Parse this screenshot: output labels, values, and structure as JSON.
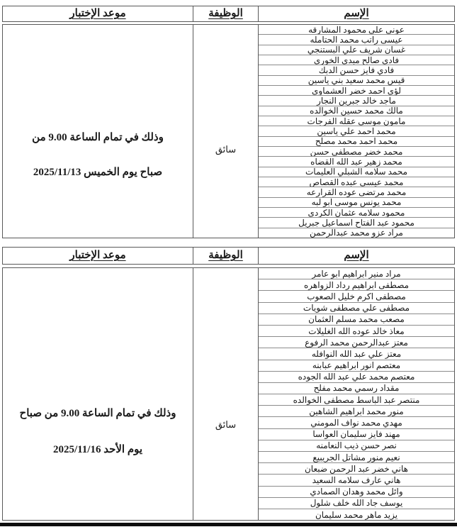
{
  "columns": {
    "date": "موعد الإختبار",
    "job": "الوظيفة",
    "name": "الإسم"
  },
  "tables": [
    {
      "job": "سائق",
      "schedule_line1": "وذلك في تمام الساعة 9.00  من",
      "schedule_line2": "صباح يوم الخميس 2025/11/13",
      "names": [
        "عوني علي محمود المشارقه",
        "عيسى راتب محمد الحتامله",
        "غسان شريف علي البستنجي",
        "فادي صالح مبدي الخوري",
        "فادي فايز حسن الدبك",
        "قيس محمد سعيد بني ياسين",
        "لؤي احمد خضر العشماوي",
        "ماجد خالد جبرين النجار",
        "مالك محمد حسين الخوالده",
        "مامون موسى عقله الفرجات",
        "محمد احمد علي ياسين",
        "محمد احمد محمد مصلح",
        "محمد خضر مصطفى حسن",
        "محمد زهير عبد الله القضاه",
        "محمد سلامه الشبلي العليمات",
        "محمد عيسى عبده القصاص",
        "محمد مرتضى عوده القرارعه",
        "محمد يونس موسى ابو لبه",
        "محمود سلامه عثمان الكردي",
        "محمود عبد الفتاح اسماعيل جبريل",
        "مراد عزو محمد عبدالرحمن"
      ]
    },
    {
      "job": "سائق",
      "schedule_line1": "وذلك في تمام الساعة 9.00 من صباح",
      "schedule_line2": "يوم الأحد  2025/11/16",
      "names": [
        "مراد منير ابراهيم ابو عامر",
        "مصطفى ابراهيم رداد الزواهره",
        "مصطفى اكرم خليل الصعوب",
        "مصطفى علي مصطفى شويات",
        "مصعب محمد مسلم العثمان",
        "معاذ خالد عوده الله الغليلات",
        "معتز عبدالرحمن محمد الرفوع",
        "معتز علي عبد الله النوافله",
        "معتصم انور ابراهيم عبابنه",
        "معتصم محمد علي عبد الله الجوده",
        "مقداد رسمي محمد مفلح",
        "منتصر عبد الباسط مصطفى الخوالده",
        "منور محمد ابراهيم الشاهين",
        "مهدي محمد نواف المومني",
        "مهند فايز سليمان العواسا",
        "نصر حسن ذيب النعامنه",
        "نعيم منور مشاتل الجريبيع",
        "هاني خضر عبد الرحمن ضبعان",
        "هاني عارف سلامه السعيد",
        "وائل محمد وهدان الصمادي",
        "يوسف جاد الله خلف شلول",
        "يزيد ماهر محمد سليمان"
      ]
    }
  ]
}
